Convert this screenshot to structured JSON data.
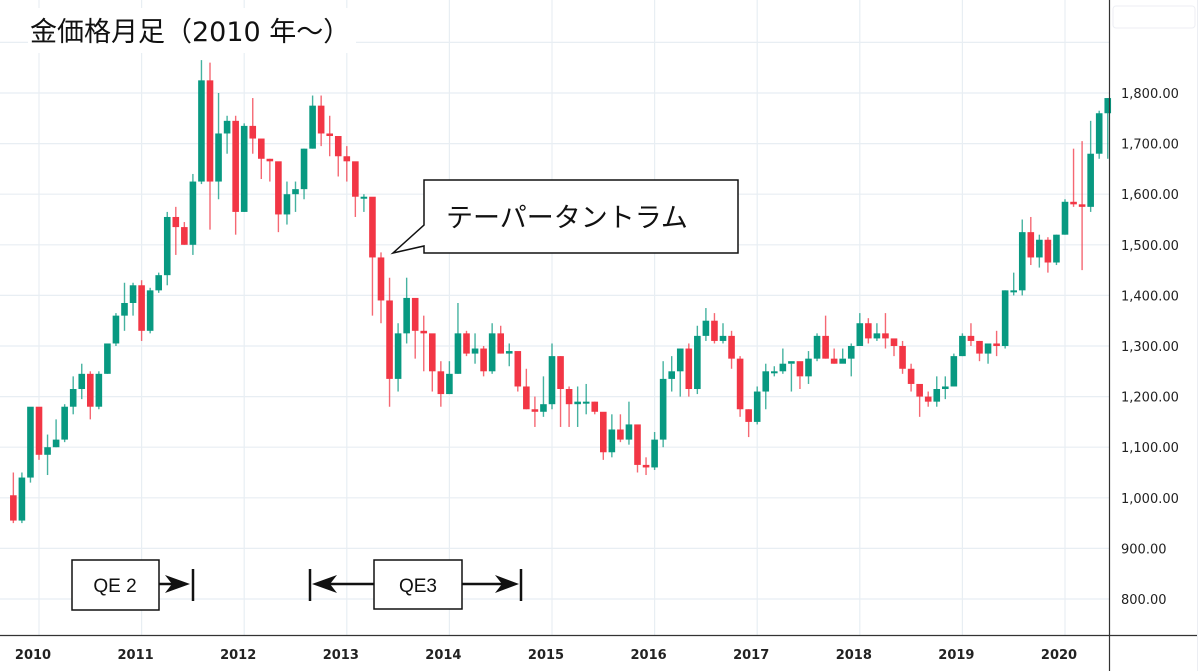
{
  "title": "金価格月足（2010 年〜）",
  "colors": {
    "up": "#089981",
    "down": "#f23645",
    "grid": "#e8eef3",
    "axis": "#333333",
    "background": "#ffffff"
  },
  "callout": {
    "text": "テーパータントラム"
  },
  "annotations": [
    {
      "label": "QE 2",
      "type": "end-arrow"
    },
    {
      "label": "QE3",
      "type": "range-arrow"
    }
  ],
  "chart_data": {
    "type": "candlestick",
    "title": "金価格月足（2010 年〜）",
    "xlabel": "",
    "ylabel": "",
    "ylim": [
      740,
      1880
    ],
    "grid": true,
    "x_ticks": [
      "2010",
      "2011",
      "2012",
      "2013",
      "2014",
      "2015",
      "2016",
      "2017",
      "2018",
      "2019",
      "2020"
    ],
    "y_ticks": [
      "800.00",
      "900.00",
      "1,000.00",
      "1,100.00",
      "1,200.00",
      "1,300.00",
      "1,400.00",
      "1,500.00",
      "1,600.00",
      "1,700.00",
      "1,800.00"
    ],
    "y_tick_values": [
      800,
      900,
      1000,
      1100,
      1200,
      1300,
      1400,
      1500,
      1600,
      1700,
      1800
    ],
    "start_month": "2009-10",
    "ohlc": [
      [
        1005,
        1050,
        950,
        955
      ],
      [
        955,
        1050,
        950,
        1040
      ],
      [
        1040,
        1175,
        1030,
        1180
      ],
      [
        1180,
        1160,
        1075,
        1085
      ],
      [
        1085,
        1125,
        1045,
        1100
      ],
      [
        1100,
        1155,
        1100,
        1115
      ],
      [
        1115,
        1185,
        1110,
        1180
      ],
      [
        1180,
        1240,
        1165,
        1215
      ],
      [
        1215,
        1265,
        1195,
        1245
      ],
      [
        1245,
        1250,
        1155,
        1180
      ],
      [
        1180,
        1250,
        1175,
        1245
      ],
      [
        1245,
        1300,
        1245,
        1305
      ],
      [
        1305,
        1365,
        1300,
        1360
      ],
      [
        1360,
        1425,
        1330,
        1385
      ],
      [
        1385,
        1425,
        1360,
        1420
      ],
      [
        1420,
        1430,
        1310,
        1330
      ],
      [
        1330,
        1415,
        1325,
        1410
      ],
      [
        1410,
        1445,
        1405,
        1440
      ],
      [
        1440,
        1565,
        1420,
        1555
      ],
      [
        1555,
        1575,
        1480,
        1535
      ],
      [
        1535,
        1545,
        1500,
        1500
      ],
      [
        1500,
        1640,
        1480,
        1625
      ],
      [
        1625,
        1865,
        1620,
        1825
      ],
      [
        1825,
        1860,
        1530,
        1625
      ],
      [
        1625,
        1800,
        1590,
        1720
      ],
      [
        1720,
        1755,
        1680,
        1745
      ],
      [
        1745,
        1755,
        1520,
        1565
      ],
      [
        1565,
        1740,
        1565,
        1735
      ],
      [
        1735,
        1790,
        1680,
        1710
      ],
      [
        1710,
        1695,
        1630,
        1670
      ],
      [
        1670,
        1670,
        1625,
        1665
      ],
      [
        1665,
        1645,
        1525,
        1560
      ],
      [
        1560,
        1625,
        1540,
        1600
      ],
      [
        1600,
        1625,
        1565,
        1610
      ],
      [
        1610,
        1690,
        1590,
        1690
      ],
      [
        1690,
        1795,
        1690,
        1775
      ],
      [
        1775,
        1795,
        1695,
        1720
      ],
      [
        1720,
        1755,
        1675,
        1715
      ],
      [
        1715,
        1700,
        1635,
        1675
      ],
      [
        1675,
        1695,
        1625,
        1665
      ],
      [
        1665,
        1615,
        1555,
        1595
      ],
      [
        1595,
        1600,
        1565,
        1595
      ],
      [
        1595,
        1485,
        1360,
        1475
      ],
      [
        1475,
        1485,
        1345,
        1390
      ],
      [
        1390,
        1435,
        1180,
        1235
      ],
      [
        1235,
        1345,
        1210,
        1325
      ],
      [
        1325,
        1435,
        1305,
        1395
      ],
      [
        1395,
        1380,
        1275,
        1330
      ],
      [
        1330,
        1360,
        1250,
        1325
      ],
      [
        1325,
        1285,
        1210,
        1250
      ],
      [
        1250,
        1270,
        1180,
        1205
      ],
      [
        1205,
        1270,
        1205,
        1245
      ],
      [
        1245,
        1385,
        1245,
        1325
      ],
      [
        1325,
        1330,
        1280,
        1285
      ],
      [
        1285,
        1325,
        1265,
        1295
      ],
      [
        1295,
        1300,
        1240,
        1250
      ],
      [
        1250,
        1345,
        1245,
        1325
      ],
      [
        1325,
        1340,
        1285,
        1285
      ],
      [
        1285,
        1305,
        1260,
        1290
      ],
      [
        1290,
        1280,
        1210,
        1220
      ],
      [
        1220,
        1255,
        1175,
        1175
      ],
      [
        1175,
        1200,
        1140,
        1170
      ],
      [
        1170,
        1240,
        1160,
        1185
      ],
      [
        1185,
        1305,
        1175,
        1280
      ],
      [
        1280,
        1280,
        1140,
        1215
      ],
      [
        1215,
        1220,
        1140,
        1185
      ],
      [
        1185,
        1220,
        1140,
        1190
      ],
      [
        1190,
        1225,
        1165,
        1190
      ],
      [
        1190,
        1190,
        1165,
        1170
      ],
      [
        1170,
        1155,
        1075,
        1090
      ],
      [
        1090,
        1165,
        1080,
        1135
      ],
      [
        1135,
        1165,
        1110,
        1115
      ],
      [
        1115,
        1190,
        1105,
        1145
      ],
      [
        1145,
        1140,
        1050,
        1065
      ],
      [
        1065,
        1080,
        1045,
        1060
      ],
      [
        1060,
        1130,
        1055,
        1115
      ],
      [
        1115,
        1270,
        1100,
        1235
      ],
      [
        1235,
        1280,
        1210,
        1250
      ],
      [
        1250,
        1295,
        1200,
        1295
      ],
      [
        1295,
        1305,
        1200,
        1215
      ],
      [
        1215,
        1340,
        1205,
        1320
      ],
      [
        1320,
        1375,
        1310,
        1350
      ],
      [
        1350,
        1365,
        1305,
        1310
      ],
      [
        1310,
        1345,
        1305,
        1320
      ],
      [
        1320,
        1330,
        1255,
        1275
      ],
      [
        1275,
        1280,
        1160,
        1175
      ],
      [
        1175,
        1175,
        1120,
        1150
      ],
      [
        1150,
        1220,
        1145,
        1210
      ],
      [
        1210,
        1265,
        1175,
        1250
      ],
      [
        1250,
        1260,
        1240,
        1250
      ],
      [
        1250,
        1295,
        1245,
        1265
      ],
      [
        1265,
        1265,
        1210,
        1270
      ],
      [
        1270,
        1240,
        1215,
        1240
      ],
      [
        1240,
        1290,
        1225,
        1275
      ],
      [
        1275,
        1325,
        1270,
        1320
      ],
      [
        1320,
        1360,
        1275,
        1275
      ],
      [
        1275,
        1295,
        1265,
        1265
      ],
      [
        1265,
        1295,
        1275,
        1275
      ],
      [
        1275,
        1305,
        1240,
        1300
      ],
      [
        1300,
        1365,
        1300,
        1345
      ],
      [
        1345,
        1355,
        1305,
        1315
      ],
      [
        1315,
        1345,
        1310,
        1325
      ],
      [
        1325,
        1365,
        1295,
        1315
      ],
      [
        1315,
        1310,
        1280,
        1300
      ],
      [
        1300,
        1310,
        1245,
        1255
      ],
      [
        1255,
        1265,
        1210,
        1225
      ],
      [
        1225,
        1215,
        1160,
        1200
      ],
      [
        1200,
        1210,
        1180,
        1190
      ],
      [
        1190,
        1240,
        1180,
        1215
      ],
      [
        1215,
        1240,
        1195,
        1220
      ],
      [
        1220,
        1285,
        1220,
        1280
      ],
      [
        1280,
        1325,
        1280,
        1320
      ],
      [
        1320,
        1345,
        1300,
        1310
      ],
      [
        1310,
        1310,
        1270,
        1285
      ],
      [
        1285,
        1300,
        1265,
        1305
      ],
      [
        1305,
        1330,
        1280,
        1300
      ],
      [
        1300,
        1410,
        1295,
        1410
      ],
      [
        1410,
        1445,
        1400,
        1410
      ],
      [
        1410,
        1550,
        1400,
        1525
      ],
      [
        1525,
        1555,
        1460,
        1475
      ],
      [
        1475,
        1520,
        1455,
        1510
      ],
      [
        1510,
        1515,
        1445,
        1465
      ],
      [
        1465,
        1520,
        1460,
        1520
      ],
      [
        1520,
        1590,
        1520,
        1585
      ],
      [
        1585,
        1690,
        1575,
        1580
      ],
      [
        1580,
        1705,
        1450,
        1575
      ],
      [
        1575,
        1745,
        1565,
        1680
      ],
      [
        1680,
        1765,
        1670,
        1760
      ],
      [
        1760,
        1790,
        1670,
        1790
      ]
    ]
  }
}
